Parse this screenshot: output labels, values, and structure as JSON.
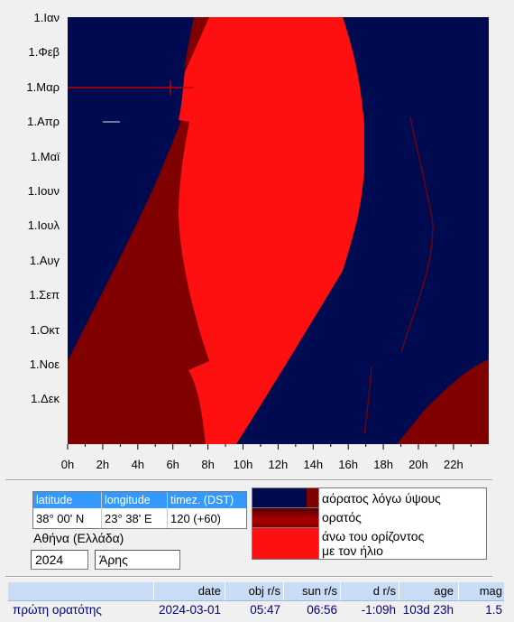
{
  "chart": {
    "months": [
      "1.Ιαν",
      "1.Φεβ",
      "1.Μαρ",
      "1.Απρ",
      "1.Μαϊ",
      "1.Ιουν",
      "1.Ιουλ",
      "1.Αυγ",
      "1.Σεπ",
      "1.Οκτ",
      "1.Νοε",
      "1.Δεκ"
    ],
    "hours": [
      "0h",
      "2h",
      "4h",
      "6h",
      "8h",
      "10h",
      "12h",
      "14h",
      "16h",
      "18h",
      "20h",
      "22h"
    ],
    "colors": {
      "invisible": "#000a50",
      "visible": "#800000",
      "sun": "#ff1010",
      "background": "#f0f0f0"
    }
  },
  "location": {
    "headers": {
      "latitude": "latitude",
      "longitude": "longitude",
      "timezone": "timez. (DST)"
    },
    "values": {
      "latitude": "38° 00'  N",
      "longitude": "23° 38'  E",
      "timezone": "120 (+60)"
    },
    "place": "Αθήνα (Ελλάδα)",
    "year": "2024",
    "object": "Άρης"
  },
  "legend": {
    "invisible": "αόρατος λόγω ύψους",
    "visible": "ορατός",
    "sun_line1": "άνω του ορίζοντος",
    "sun_line2": "με τον ήλιο"
  },
  "results": {
    "headers": {
      "date": "date",
      "obj": "obj r/s",
      "sun": "sun r/s",
      "d": "d r/s",
      "age": "age",
      "mag": "mag"
    },
    "row": {
      "event": "πρώτη ορατότης",
      "date": "2024-03-01",
      "obj": "05:47",
      "sun": "06:56",
      "d": "-1:09h",
      "age": "103d 23h",
      "mag": "1.5"
    }
  }
}
